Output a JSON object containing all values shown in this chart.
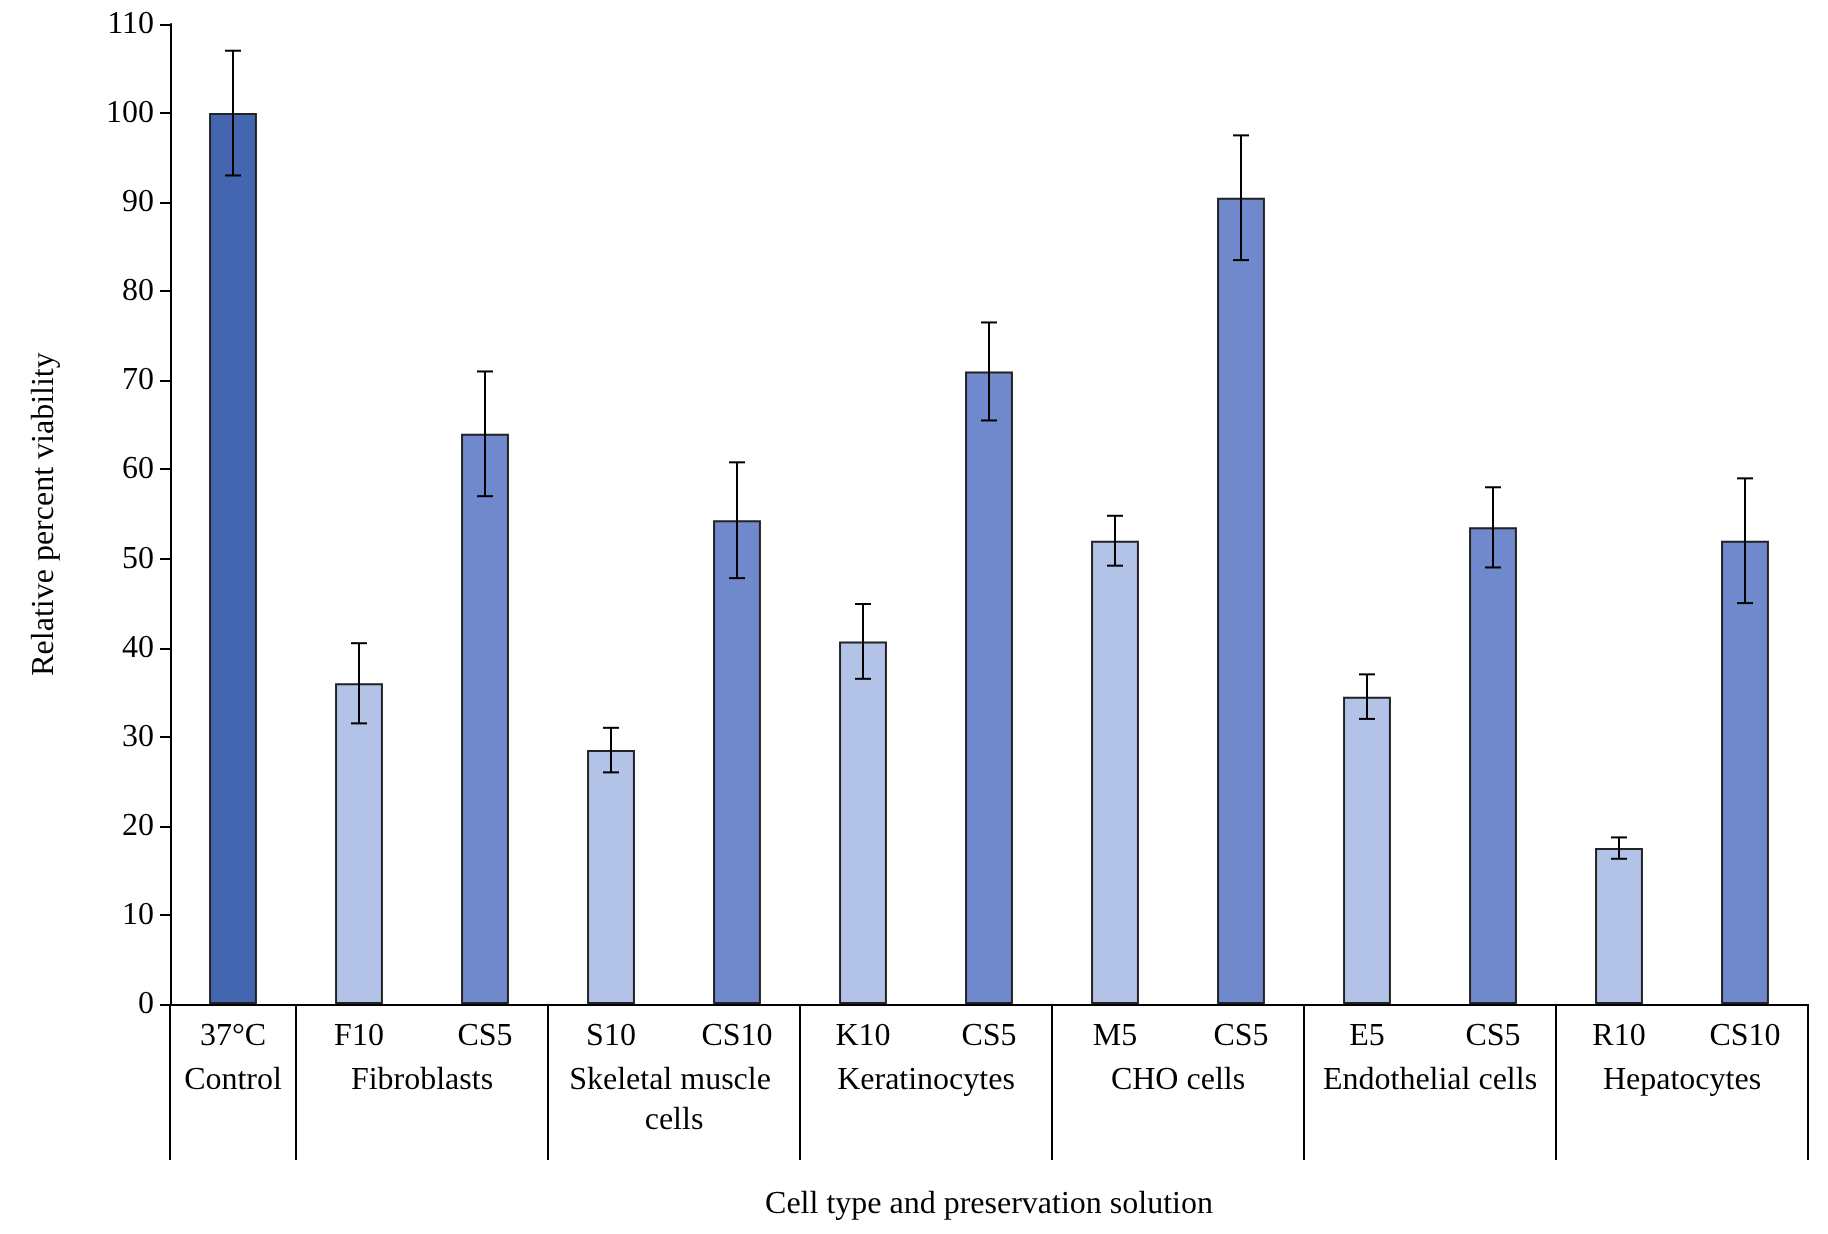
{
  "chart_data": {
    "type": "bar",
    "xlabel": "Cell type and preservation solution",
    "ylabel": "Relative percent viability",
    "categories": [
      "37°C",
      "F10",
      "CS5",
      "S10",
      "CS10",
      "K10",
      "CS5",
      "M5",
      "CS5",
      "E5",
      "CS5",
      "R10",
      "CS10"
    ],
    "values": [
      100,
      36,
      64,
      28.5,
      54.3,
      40.7,
      71,
      52,
      90.5,
      34.5,
      53.5,
      17.5,
      52
    ],
    "errors": [
      7,
      4.5,
      7,
      2.5,
      6.5,
      4.2,
      5.5,
      2.8,
      7,
      2.5,
      4.5,
      1.2,
      7
    ],
    "colors": [
      "#4466b0",
      "#b3c3e8",
      "#6f89cc",
      "#b3c3e8",
      "#6f89cc",
      "#b3c3e8",
      "#6f89cc",
      "#b3c3e8",
      "#6f89cc",
      "#b3c3e8",
      "#6f89cc",
      "#b3c3e8",
      "#6f89cc"
    ],
    "annotations": [
      "Control",
      "Fibroblasts",
      "Skeletal muscle cells",
      "Keratinocytes",
      "CHO cells",
      "Endothelial cells",
      "Hepatocytes"
    ],
    "ylim": [
      0,
      110
    ],
    "yticks": [
      0,
      10,
      20,
      30,
      40,
      50,
      60,
      70,
      80,
      90,
      100,
      110
    ],
    "grid": false
  }
}
